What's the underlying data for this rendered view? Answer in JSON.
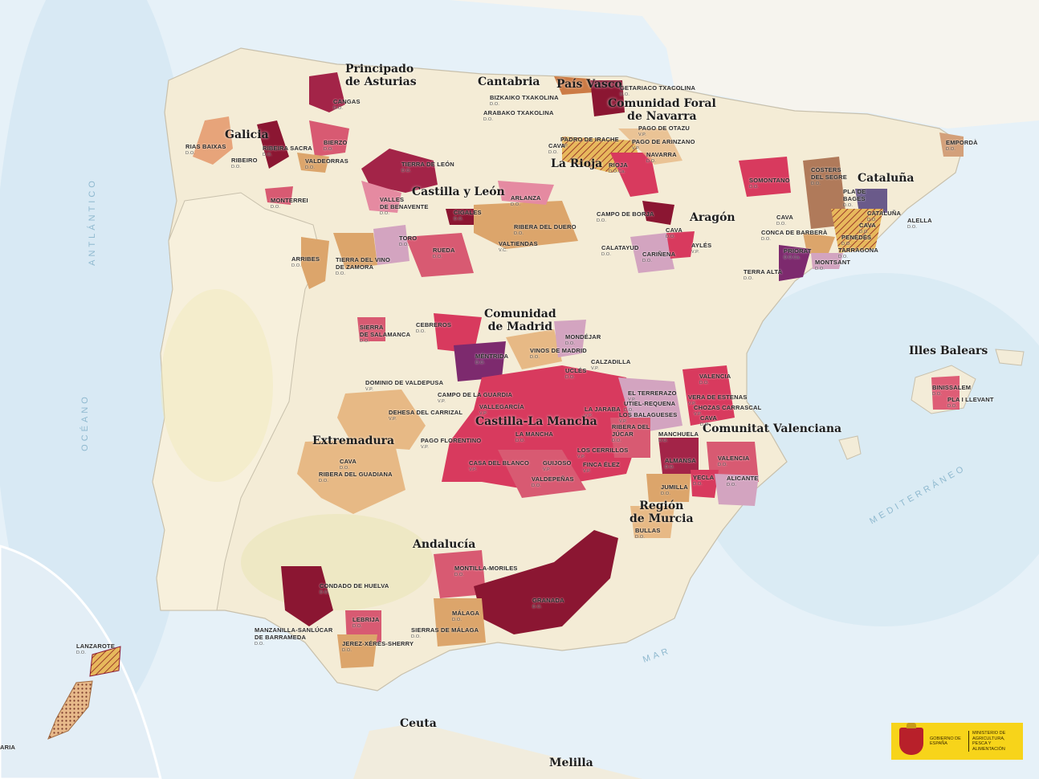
{
  "colors": {
    "sea": "#e6f1f8",
    "land": "#f3ecd8",
    "do_red": "#d83a5e",
    "do_dark": "#8b1632",
    "do_orange": "#dca56b",
    "do_pink": "#e58aa1",
    "do_lilac": "#d3a4c0",
    "do_purple": "#7d2a6e",
    "badge_yellow": "#f7d41a"
  },
  "regions": [
    {
      "name": "Principado\nde Asturias"
    },
    {
      "name": "Cantabria"
    },
    {
      "name": "País Vasco"
    },
    {
      "name": "Comunidad Foral\nde Navarra"
    },
    {
      "name": "Galicia"
    },
    {
      "name": "La Rioja"
    },
    {
      "name": "Castilla y León"
    },
    {
      "name": "Aragón"
    },
    {
      "name": "Cataluña"
    },
    {
      "name": "Comunidad\nde Madrid"
    },
    {
      "name": "Illes Balears"
    },
    {
      "name": "Castilla-La Mancha"
    },
    {
      "name": "Extremadura"
    },
    {
      "name": "Comunitat Valenciana"
    },
    {
      "name": "Región\nde Murcia"
    },
    {
      "name": "Andalucía"
    },
    {
      "name": "Ceuta"
    },
    {
      "name": "Melilla"
    }
  ],
  "designations": [
    {
      "name": "CANGAS",
      "sub": "D.O."
    },
    {
      "name": "BIZKAIKO TXAKOLINA",
      "sub": "D.O."
    },
    {
      "name": "GETARIACO TXACOLINA",
      "sub": "D.O."
    },
    {
      "name": "ARABAKO TXAKOLINA",
      "sub": "D.O."
    },
    {
      "name": "PAGO DE OTAZU",
      "sub": "V.P."
    },
    {
      "name": "PADRO DE IRACHE",
      "sub": "V.P."
    },
    {
      "name": "PAGO DE ARINZANO",
      "sub": "V.P."
    },
    {
      "name": "CAVA",
      "sub": "D.O."
    },
    {
      "name": "NAVARRA",
      "sub": "D.O."
    },
    {
      "name": "RIOJA",
      "sub": "D.O.Ca."
    },
    {
      "name": "RIAS BAIXAS",
      "sub": "D.O."
    },
    {
      "name": "RIBEIRA SACRA",
      "sub": "D.O."
    },
    {
      "name": "BIERZO",
      "sub": "D.O."
    },
    {
      "name": "RIBEIRO",
      "sub": "D.O."
    },
    {
      "name": "VALDEORRAS",
      "sub": "D.O."
    },
    {
      "name": "MONTERREI",
      "sub": "D.O."
    },
    {
      "name": "TIERRA DE LEÓN",
      "sub": "D.O."
    },
    {
      "name": "VALLES\nDE BENAVENTE",
      "sub": "D.O."
    },
    {
      "name": "ARLANZA",
      "sub": "D.O."
    },
    {
      "name": "CIGALES",
      "sub": "D.O."
    },
    {
      "name": "RIBERA DEL DUERO",
      "sub": "D.O."
    },
    {
      "name": "VALTIENDAS",
      "sub": "V.C."
    },
    {
      "name": "TORO",
      "sub": "D.O."
    },
    {
      "name": "RUEDA",
      "sub": "D.O."
    },
    {
      "name": "ARRIBES",
      "sub": "D.O."
    },
    {
      "name": "TIERRA DEL VINO\nDE ZAMORA",
      "sub": "D.O."
    },
    {
      "name": "CAMPO DE BORJA",
      "sub": "D.O."
    },
    {
      "name": "CAVA",
      "sub": "D.O."
    },
    {
      "name": "CALATAYUD",
      "sub": "D.O."
    },
    {
      "name": "AYLÉS",
      "sub": "V.P."
    },
    {
      "name": "CARIÑENA",
      "sub": "D.O."
    },
    {
      "name": "SOMONTANO",
      "sub": "D.O."
    },
    {
      "name": "COSTERS\nDEL SEGRE",
      "sub": "D.O."
    },
    {
      "name": "EMPORDÀ",
      "sub": "D.O."
    },
    {
      "name": "PLA DE\nBAGES",
      "sub": "D.O."
    },
    {
      "name": "CATALUÑA",
      "sub": "D.O."
    },
    {
      "name": "ALELLA",
      "sub": "D.O."
    },
    {
      "name": "CAVA",
      "sub": "D.O."
    },
    {
      "name": "CONCA DE BARBERÀ",
      "sub": "D.O."
    },
    {
      "name": "CAVA",
      "sub": "D.O."
    },
    {
      "name": "PENEDÈS",
      "sub": "D.O."
    },
    {
      "name": "PRIORAT",
      "sub": "D.O.Ca."
    },
    {
      "name": "TARRAGONA",
      "sub": "D.O."
    },
    {
      "name": "MONTSANT",
      "sub": "D.O."
    },
    {
      "name": "TERRA ALTA",
      "sub": "D.O."
    },
    {
      "name": "SIERRA\nDE SALAMANCA",
      "sub": "D.O."
    },
    {
      "name": "CEBREROS",
      "sub": "D.O."
    },
    {
      "name": "MONDÉJAR",
      "sub": "D.O."
    },
    {
      "name": "MÉNTRIDA",
      "sub": "D.O."
    },
    {
      "name": "VINOS DE MADRID",
      "sub": "D.O."
    },
    {
      "name": "CALZADILLA",
      "sub": "V.P."
    },
    {
      "name": "UCLÉS",
      "sub": "D.O."
    },
    {
      "name": "DOMINIO DE VALDEPUSA",
      "sub": "V.P."
    },
    {
      "name": "CAMPO DE LA GUARDIA",
      "sub": "V.P."
    },
    {
      "name": "VALLEGARCÍA",
      "sub": "V.P."
    },
    {
      "name": "DEHESA DEL CARRIZAL",
      "sub": "V.P."
    },
    {
      "name": "PAGO FLORENTINO",
      "sub": "V.P."
    },
    {
      "name": "LA JARABA",
      "sub": "V.P."
    },
    {
      "name": "LA MANCHA",
      "sub": "D.O."
    },
    {
      "name": "LOS CERRILLOS",
      "sub": "V.P."
    },
    {
      "name": "CASA DEL BLANCO",
      "sub": "V.P."
    },
    {
      "name": "GUIJOSO",
      "sub": "V.P."
    },
    {
      "name": "FINCA ÉLEZ",
      "sub": "V.P."
    },
    {
      "name": "VALDEPEÑAS",
      "sub": "D.O."
    },
    {
      "name": "EL TERRERAZO",
      "sub": "V.P."
    },
    {
      "name": "UTIEL-REQUENA",
      "sub": "D.O."
    },
    {
      "name": "LOS BALAGUESES",
      "sub": "V.P."
    },
    {
      "name": "RIBERA DEL\nJÚCAR",
      "sub": "D.O."
    },
    {
      "name": "MANCHUELA",
      "sub": "D.O."
    },
    {
      "name": "VALENCIA",
      "sub": "D.O."
    },
    {
      "name": "VERA DE ESTENAS",
      "sub": "V.P."
    },
    {
      "name": "CHOZAS CARRASCAL",
      "sub": "V.P."
    },
    {
      "name": "CAVA",
      "sub": "D.O."
    },
    {
      "name": "ALMANSA",
      "sub": "D.O."
    },
    {
      "name": "VALENCIA",
      "sub": "D.O."
    },
    {
      "name": "YECLA",
      "sub": "D.O."
    },
    {
      "name": "ALICANTE",
      "sub": "D.O."
    },
    {
      "name": "JUMILLA",
      "sub": "D.O."
    },
    {
      "name": "BULLAS",
      "sub": "D.O."
    },
    {
      "name": "CAVA",
      "sub": "D.O."
    },
    {
      "name": "RIBERA DEL GUADIANA",
      "sub": "D.O."
    },
    {
      "name": "MONTILLA-MORILES",
      "sub": "D.O."
    },
    {
      "name": "CONDADO DE HUELVA",
      "sub": "D.O."
    },
    {
      "name": "GRANADA",
      "sub": "D.O."
    },
    {
      "name": "LEBRIJA",
      "sub": "D.O."
    },
    {
      "name": "MÁLAGA",
      "sub": "D.O."
    },
    {
      "name": "MANZANILLA-SANLÚCAR\nDE BARRAMEDA",
      "sub": "D.O."
    },
    {
      "name": "SIERRAS DE MÁLAGA",
      "sub": "D.O."
    },
    {
      "name": "JEREZ-XÉRÈS-SHERRY",
      "sub": "D.O."
    },
    {
      "name": "BINISSALEM",
      "sub": "D.O."
    },
    {
      "name": "PLA I LLEVANT",
      "sub": "D.O."
    },
    {
      "name": "LANZAROTE",
      "sub": "D.O."
    },
    {
      "name": "ARIA",
      "sub": ""
    }
  ],
  "seas": {
    "atlantic_1": "ANTLÁNTICO",
    "atlantic_2": "OCÉANO",
    "mediterranean": "MEDITERRÁNEO",
    "mar": "MAR"
  },
  "badge": {
    "gov": "GOBIERNO DE ESPAÑA",
    "ministry": "MINISTERIO DE AGRICULTURA, PESCA Y ALIMENTACIÓN"
  }
}
